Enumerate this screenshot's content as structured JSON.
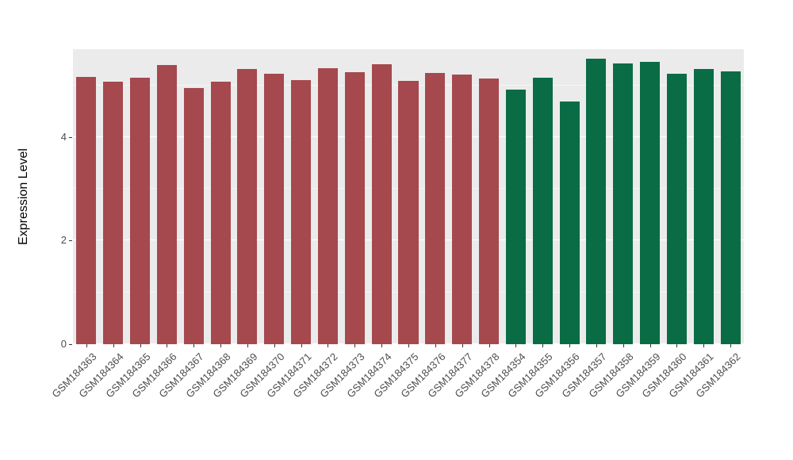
{
  "chart_data": {
    "type": "bar",
    "title": "",
    "xlabel": "",
    "ylabel": "Expression Level",
    "ylim": [
      0,
      5.7
    ],
    "yticks": [
      0,
      2,
      4
    ],
    "yticks_minor": [
      1,
      3,
      5
    ],
    "grid": true,
    "legend": "none",
    "panel_background": "#EBEBEB",
    "grid_major_color": "#FFFFFF",
    "grid_minor_color": "#FFFFFF",
    "axis_text_color": "#4D4D4D",
    "axis_title_color": "#000000",
    "tick_color": "#333333",
    "series": [
      {
        "name": "group-red",
        "color": "#A5494F",
        "categories": [
          "GSM184363",
          "GSM184364",
          "GSM184365",
          "GSM184366",
          "GSM184367",
          "GSM184368",
          "GSM184369",
          "GSM184370",
          "GSM184371",
          "GSM184372",
          "GSM184373",
          "GSM184374",
          "GSM184375",
          "GSM184376",
          "GSM184377",
          "GSM184378"
        ],
        "values": [
          5.16,
          5.07,
          5.15,
          5.39,
          4.95,
          5.07,
          5.31,
          5.22,
          5.1,
          5.33,
          5.25,
          5.41,
          5.08,
          5.24,
          5.21,
          5.13
        ]
      },
      {
        "name": "group-green",
        "color": "#096C45",
        "categories": [
          "GSM184354",
          "GSM184355",
          "GSM184356",
          "GSM184357",
          "GSM184358",
          "GSM184359",
          "GSM184360",
          "GSM184361",
          "GSM184362"
        ],
        "values": [
          4.92,
          5.15,
          4.69,
          5.51,
          5.42,
          5.45,
          5.22,
          5.31,
          5.27
        ]
      }
    ]
  }
}
